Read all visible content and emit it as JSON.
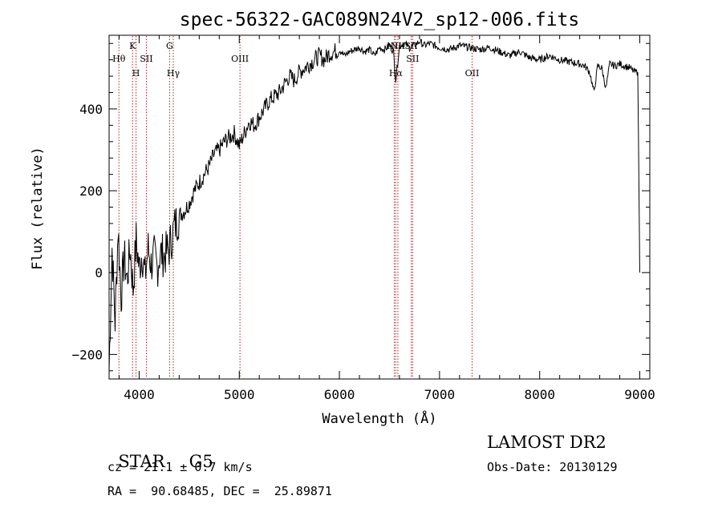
{
  "chart_data": {
    "type": "line",
    "title": "spec-56322-GAC089N24V2_sp12-006.fits",
    "xlabel": "Wavelength (Å)",
    "ylabel": "Flux (relative)",
    "xlim": [
      3700,
      9100
    ],
    "ylim": [
      -260,
      580
    ],
    "xticks": [
      4000,
      5000,
      6000,
      7000,
      8000,
      9000
    ],
    "yticks": [
      -200,
      0,
      200,
      400
    ],
    "xtick_labels": [
      "4000",
      "5000",
      "6000",
      "7000",
      "8000",
      "9000"
    ],
    "ytick_labels": [
      "−200",
      "0",
      "200",
      "400"
    ],
    "series": [
      {
        "name": "flux",
        "x": [
          3700,
          3730,
          3760,
          3790,
          3820,
          3850,
          3880,
          3910,
          3940,
          3970,
          4000,
          4030,
          4060,
          4090,
          4120,
          4150,
          4180,
          4210,
          4250,
          4300,
          4350,
          4400,
          4450,
          4500,
          4550,
          4600,
          4650,
          4700,
          4750,
          4800,
          4850,
          4900,
          4950,
          5000,
          5050,
          5100,
          5150,
          5200,
          5250,
          5300,
          5350,
          5400,
          5450,
          5500,
          5550,
          5600,
          5650,
          5700,
          5750,
          5800,
          5850,
          5900,
          5950,
          6000,
          6050,
          6100,
          6150,
          6200,
          6250,
          6300,
          6350,
          6400,
          6450,
          6500,
          6540,
          6563,
          6600,
          6650,
          6700,
          6750,
          6800,
          6850,
          6900,
          7000,
          7100,
          7200,
          7300,
          7400,
          7500,
          7600,
          7700,
          7800,
          7900,
          8000,
          8100,
          8200,
          8300,
          8400,
          8450,
          8500,
          8542,
          8580,
          8620,
          8662,
          8700,
          8750,
          8800,
          8850,
          8900,
          8950,
          8980,
          9000
        ],
        "y": [
          -240,
          60,
          -120,
          110,
          -60,
          40,
          -20,
          60,
          -40,
          80,
          10,
          50,
          -10,
          60,
          20,
          40,
          10,
          50,
          40,
          60,
          110,
          140,
          150,
          170,
          200,
          220,
          240,
          260,
          290,
          300,
          320,
          330,
          340,
          310,
          340,
          370,
          360,
          380,
          400,
          420,
          430,
          440,
          460,
          480,
          470,
          490,
          500,
          510,
          520,
          530,
          520,
          535,
          540,
          545,
          530,
          540,
          545,
          550,
          540,
          545,
          530,
          550,
          545,
          555,
          540,
          470,
          555,
          560,
          550,
          555,
          565,
          555,
          560,
          550,
          545,
          555,
          550,
          545,
          550,
          540,
          530,
          540,
          525,
          520,
          530,
          520,
          515,
          510,
          505,
          490,
          440,
          505,
          500,
          450,
          510,
          505,
          510,
          505,
          500,
          490,
          490,
          0
        ]
      }
    ],
    "lines": [
      {
        "name": "Hθ",
        "wavelength": 3798,
        "row": 1
      },
      {
        "name": "K",
        "wavelength": 3934,
        "row": 0
      },
      {
        "name": "H",
        "wavelength": 3969,
        "row": 2
      },
      {
        "name": "SII",
        "wavelength": 4072,
        "row": 1
      },
      {
        "name": "G",
        "wavelength": 4304,
        "row": 0
      },
      {
        "name": "Hγ",
        "wavelength": 4341,
        "row": 2
      },
      {
        "name": "OIII",
        "wavelength": 5007,
        "row": 1
      },
      {
        "name": "NII",
        "wavelength": 6548,
        "row": 0
      },
      {
        "name": "Hα",
        "wavelength": 6563,
        "row": 2
      },
      {
        "name": "NII",
        "wavelength": 6584,
        "row": 0
      },
      {
        "name": "SII",
        "wavelength": 6717,
        "row": 0
      },
      {
        "name": "SII",
        "wavelength": 6731,
        "row": 1
      },
      {
        "name": "OII",
        "wavelength": 7325,
        "row": 2
      }
    ]
  },
  "footer": {
    "class_label": "STAR",
    "subclass": "G5",
    "survey": "LAMOST DR2",
    "cz": "cz = 21.1 ± 0.7 km/s",
    "obs_date": "Obs-Date: 20130129",
    "coords": "RA =  90.68485, DEC =  25.89871"
  }
}
